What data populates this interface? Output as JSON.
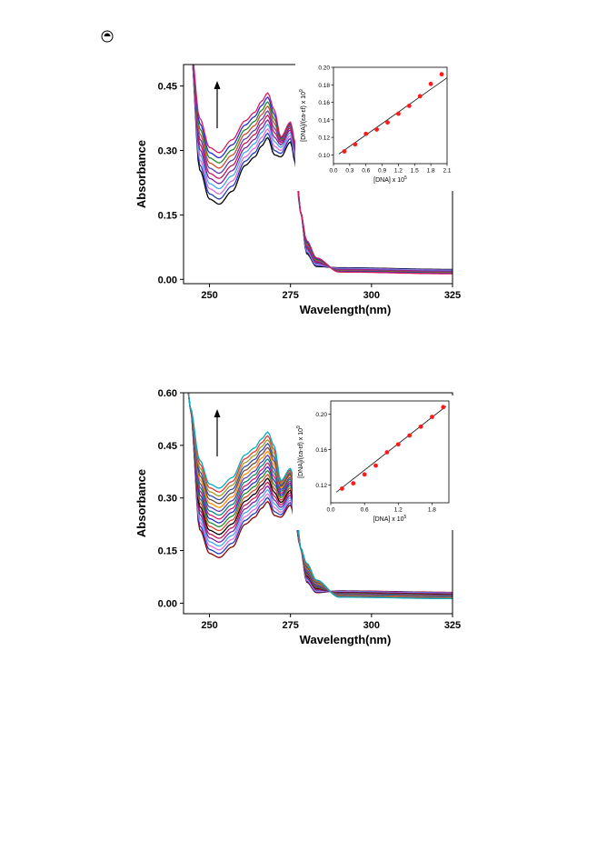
{
  "page": {
    "icon": "radio-dot-icon"
  },
  "chart_data": [
    {
      "type": "line",
      "xlabel": "Wavelength(nm)",
      "ylabel": "Absorbance",
      "xlim": [
        242,
        325
      ],
      "ylim": [
        -0.01,
        0.5
      ],
      "xticks": [
        250,
        275,
        300,
        325
      ],
      "xtick_labels": [
        "250",
        "275",
        "300",
        "325"
      ],
      "yticks": [
        0.0,
        0.15,
        0.3,
        0.45
      ],
      "ytick_labels": [
        "0.00",
        "0.15",
        "0.30",
        "0.45"
      ],
      "trend_arrow": "up",
      "series_colors": [
        "#000000",
        "#1f3fbf",
        "#e06bd6",
        "#3fa9e8",
        "#7b1fa2",
        "#c2185b",
        "#5a3fb0",
        "#d7462b",
        "#1e8a2e",
        "#2a2ad0",
        "#d81b60"
      ],
      "series": [
        {
          "values_min_253": 0.175,
          "peak_268": 0.33,
          "peak_275": 0.32
        },
        {
          "values_min_253": 0.187,
          "peak_268": 0.34,
          "peak_275": 0.328
        },
        {
          "values_min_253": 0.199,
          "peak_268": 0.35,
          "peak_275": 0.335
        },
        {
          "values_min_253": 0.211,
          "peak_268": 0.361,
          "peak_275": 0.342
        },
        {
          "values_min_253": 0.223,
          "peak_268": 0.371,
          "peak_275": 0.348
        },
        {
          "values_min_253": 0.235,
          "peak_268": 0.382,
          "peak_275": 0.353
        },
        {
          "values_min_253": 0.247,
          "peak_268": 0.392,
          "peak_275": 0.357
        },
        {
          "values_min_253": 0.259,
          "peak_268": 0.403,
          "peak_275": 0.36
        },
        {
          "values_min_253": 0.271,
          "peak_268": 0.413,
          "peak_275": 0.362
        },
        {
          "values_min_253": 0.283,
          "peak_268": 0.424,
          "peak_275": 0.364
        },
        {
          "values_min_253": 0.295,
          "peak_268": 0.434,
          "peak_275": 0.366
        }
      ],
      "inset": {
        "type": "scatter",
        "xlabel_main": "[DNA] x 10",
        "xlabel_sup": "5",
        "ylabel_main": "[DNA]/(εa-εf) x 10",
        "ylabel_sup": "9",
        "xlim": [
          0.0,
          2.1
        ],
        "ylim": [
          0.09,
          0.2
        ],
        "xtick_labels": [
          "0.0",
          "0.3",
          "0.6",
          "0.9",
          "1.2",
          "1.5",
          "1.8",
          "2.1"
        ],
        "xticks": [
          0.0,
          0.3,
          0.6,
          0.9,
          1.2,
          1.5,
          1.8,
          2.1
        ],
        "ytick_labels": [
          "0.10",
          "0.12",
          "0.14",
          "0.16",
          "0.18",
          "0.20"
        ],
        "yticks": [
          0.1,
          0.12,
          0.14,
          0.16,
          0.18,
          0.2
        ],
        "points_x": [
          0.2,
          0.4,
          0.6,
          0.8,
          1.0,
          1.2,
          1.4,
          1.6,
          1.8,
          2.0
        ],
        "points_y": [
          0.104,
          0.112,
          0.124,
          0.129,
          0.137,
          0.147,
          0.156,
          0.167,
          0.181,
          0.192
        ],
        "fit_x": [
          0.1,
          2.1
        ],
        "fit_y": [
          0.101,
          0.188
        ]
      }
    },
    {
      "type": "line",
      "xlabel": "Wavelength(nm)",
      "ylabel": "Absorbance",
      "xlim": [
        242,
        325
      ],
      "ylim": [
        -0.03,
        0.6
      ],
      "xticks": [
        250,
        275,
        300,
        325
      ],
      "xtick_labels": [
        "250",
        "275",
        "300",
        "325"
      ],
      "yticks": [
        0.0,
        0.15,
        0.3,
        0.45,
        0.6
      ],
      "ytick_labels": [
        "0.00",
        "0.15",
        "0.30",
        "0.45",
        "0.60"
      ],
      "trend_arrow": "up",
      "series_colors": [
        "#8b0000",
        "#1f3fbf",
        "#e06bd6",
        "#3fa9e8",
        "#7b1fa2",
        "#c2185b",
        "#000000",
        "#d7462b",
        "#1e8a2e",
        "#2a2ad0",
        "#d81b60",
        "#00897b",
        "#5a3fb0",
        "#ff8f00",
        "#6d4c41",
        "#3949ab",
        "#9e9d24",
        "#e53935",
        "#00acc1"
      ],
      "series": [
        {
          "values_min_253": 0.13,
          "peak_268": 0.29,
          "peak_275": 0.28
        },
        {
          "values_min_253": 0.141,
          "peak_268": 0.301,
          "peak_275": 0.287
        },
        {
          "values_min_253": 0.152,
          "peak_268": 0.312,
          "peak_275": 0.294
        },
        {
          "values_min_253": 0.163,
          "peak_268": 0.323,
          "peak_275": 0.301
        },
        {
          "values_min_253": 0.174,
          "peak_268": 0.334,
          "peak_275": 0.308
        },
        {
          "values_min_253": 0.185,
          "peak_268": 0.345,
          "peak_275": 0.315
        },
        {
          "values_min_253": 0.196,
          "peak_268": 0.356,
          "peak_275": 0.322
        },
        {
          "values_min_253": 0.207,
          "peak_268": 0.367,
          "peak_275": 0.329
        },
        {
          "values_min_253": 0.218,
          "peak_268": 0.378,
          "peak_275": 0.336
        },
        {
          "values_min_253": 0.229,
          "peak_268": 0.389,
          "peak_275": 0.342
        },
        {
          "values_min_253": 0.24,
          "peak_268": 0.4,
          "peak_275": 0.348
        },
        {
          "values_min_253": 0.251,
          "peak_268": 0.411,
          "peak_275": 0.354
        },
        {
          "values_min_253": 0.262,
          "peak_268": 0.422,
          "peak_275": 0.359
        },
        {
          "values_min_253": 0.273,
          "peak_268": 0.433,
          "peak_275": 0.364
        },
        {
          "values_min_253": 0.284,
          "peak_268": 0.444,
          "peak_275": 0.368
        },
        {
          "values_min_253": 0.295,
          "peak_268": 0.455,
          "peak_275": 0.372
        },
        {
          "values_min_253": 0.306,
          "peak_268": 0.466,
          "peak_275": 0.376
        },
        {
          "values_min_253": 0.317,
          "peak_268": 0.477,
          "peak_275": 0.38
        },
        {
          "values_min_253": 0.328,
          "peak_268": 0.488,
          "peak_275": 0.384
        }
      ],
      "inset": {
        "type": "scatter",
        "xlabel_main": "[DNA] x 10",
        "xlabel_sup": "5",
        "ylabel_main": "[DNA]/(εa-εf) x 10",
        "ylabel_sup": "9",
        "xlim": [
          0.0,
          2.1
        ],
        "ylim": [
          0.1,
          0.215
        ],
        "xtick_labels": [
          "0.0",
          "0.6",
          "1.2",
          "1.8"
        ],
        "xticks": [
          0.0,
          0.6,
          1.2,
          1.8
        ],
        "ytick_labels": [
          "0.12",
          "0.16",
          "0.20"
        ],
        "yticks": [
          0.12,
          0.16,
          0.2
        ],
        "points_x": [
          0.2,
          0.4,
          0.6,
          0.8,
          1.0,
          1.2,
          1.4,
          1.6,
          1.8,
          2.0
        ],
        "points_y": [
          0.116,
          0.122,
          0.132,
          0.142,
          0.157,
          0.166,
          0.176,
          0.186,
          0.197,
          0.208
        ],
        "fit_x": [
          0.1,
          2.05
        ],
        "fit_y": [
          0.112,
          0.209
        ]
      }
    }
  ]
}
